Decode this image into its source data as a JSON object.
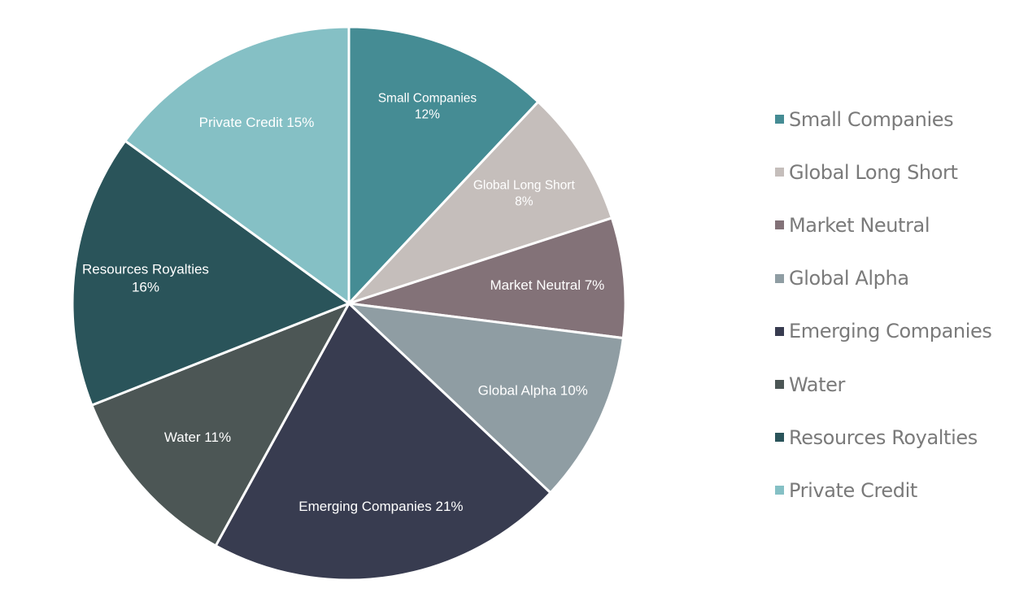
{
  "chart_data": {
    "type": "pie",
    "title": "",
    "start_angle_deg": 0,
    "direction": "clockwise",
    "slices": [
      {
        "name": "Small Companies",
        "value": 12,
        "color": "#458c94",
        "label": [
          "Small Companies",
          "12%"
        ],
        "small": true
      },
      {
        "name": "Global Long Short",
        "value": 8,
        "color": "#c5bebb",
        "label": [
          "Global Long Short",
          "8%"
        ],
        "small": true
      },
      {
        "name": "Market Neutral",
        "value": 7,
        "color": "#837278",
        "label": [
          "Market Neutral 7%"
        ]
      },
      {
        "name": "Global Alpha",
        "value": 10,
        "color": "#8f9da3",
        "label": [
          "Global Alpha 10%"
        ]
      },
      {
        "name": "Emerging Companies",
        "value": 21,
        "color": "#383c50",
        "label": [
          "Emerging Companies 21%"
        ]
      },
      {
        "name": "Water",
        "value": 11,
        "color": "#4c5655",
        "label": [
          "Water 11%"
        ]
      },
      {
        "name": "Resources Royalties",
        "value": 16,
        "color": "#2a545a",
        "label": [
          "Resources Royalties",
          "16%"
        ]
      },
      {
        "name": "Private Credit",
        "value": 15,
        "color": "#85c0c5",
        "label": [
          "Private Credit  15%"
        ]
      }
    ],
    "legend_position": "right"
  }
}
